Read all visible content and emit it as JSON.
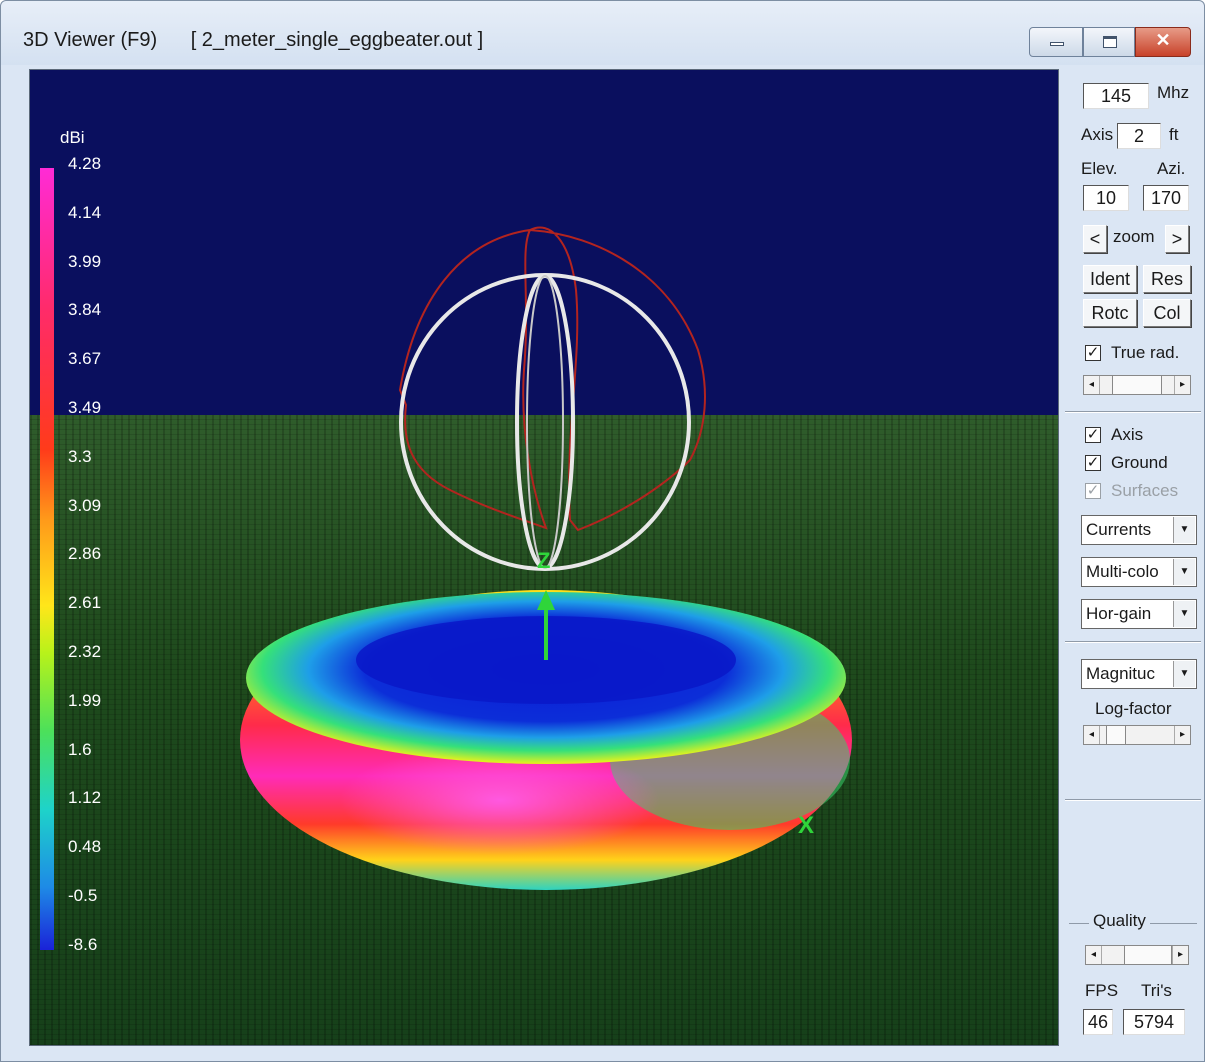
{
  "window": {
    "title": "3D Viewer (F9)",
    "file": "[ 2_meter_single_eggbeater.out ]",
    "minimize_label": "",
    "maximize_label": "",
    "close_label": "✕"
  },
  "legend": {
    "unit": "dBi",
    "values": [
      "4.28",
      "4.14",
      "3.99",
      "3.84",
      "3.67",
      "3.49",
      "3.3",
      "3.09",
      "2.86",
      "2.61",
      "2.32",
      "1.99",
      "1.6",
      "1.12",
      "0.48",
      "-0.5",
      "-8.6"
    ]
  },
  "scene": {
    "axis_z_label": "Z",
    "axis_x_label": "X"
  },
  "panel": {
    "freq_value": "145",
    "freq_unit": "Mhz",
    "axis_label": "Axis",
    "axis_value": "2",
    "axis_unit": "ft",
    "elev_label": "Elev.",
    "azi_label": "Azi.",
    "elev_value": "10",
    "azi_value": "170",
    "zoom_left": "<",
    "zoom_label": "zoom",
    "zoom_right": ">",
    "ident_label": "Ident",
    "res_label": "Res",
    "rotc_label": "Rotc",
    "col_label": "Col",
    "true_rad_label": "True rad.",
    "axis_check_label": "Axis",
    "ground_check_label": "Ground",
    "surfaces_check_label": "Surfaces",
    "checkmark": "✓",
    "scroll_left": "◂",
    "scroll_right": "▸",
    "combo_arrow": "▼",
    "currents_value": "Currents",
    "color_mode_value": "Multi-colo",
    "gain_mode_value": "Hor-gain",
    "magnitude_value": "Magnituc",
    "log_factor_label": "Log-factor",
    "quality_label": "Quality",
    "fps_label": "FPS",
    "tris_label": "Tri's",
    "fps_value": "46",
    "tris_value": "5794"
  }
}
